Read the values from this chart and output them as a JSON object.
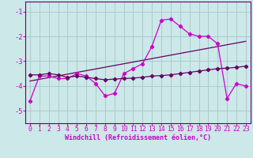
{
  "xlabel": "Windchill (Refroidissement éolien,°C)",
  "bg_color": "#cce8e8",
  "grid_color": "#aacccc",
  "line_color": "#cc00cc",
  "line_color2": "#660066",
  "xlim": [
    -0.5,
    23.5
  ],
  "ylim": [
    -5.5,
    -0.6
  ],
  "yticks": [
    -5,
    -4,
    -3,
    -2,
    -1
  ],
  "xticks": [
    0,
    1,
    2,
    3,
    4,
    5,
    6,
    7,
    8,
    9,
    10,
    11,
    12,
    13,
    14,
    15,
    16,
    17,
    18,
    19,
    20,
    21,
    22,
    23
  ],
  "series1_x": [
    0,
    1,
    2,
    3,
    4,
    5,
    6,
    7,
    8,
    9,
    10,
    11,
    12,
    13,
    14,
    15,
    16,
    17,
    18,
    19,
    20,
    21,
    22,
    23
  ],
  "series1_y": [
    -4.6,
    -3.6,
    -3.6,
    -3.7,
    -3.7,
    -3.5,
    -3.6,
    -3.9,
    -4.4,
    -4.3,
    -3.5,
    -3.3,
    -3.1,
    -2.4,
    -1.35,
    -1.3,
    -1.6,
    -1.9,
    -2.0,
    -2.0,
    -2.3,
    -4.5,
    -3.9,
    -4.0
  ],
  "series2_x": [
    0,
    1,
    2,
    3,
    4,
    5,
    6,
    7,
    8,
    9,
    10,
    11,
    12,
    13,
    14,
    15,
    16,
    17,
    18,
    19,
    20,
    21,
    22,
    23
  ],
  "series2_y": [
    -3.55,
    -3.55,
    -3.5,
    -3.55,
    -3.65,
    -3.6,
    -3.65,
    -3.7,
    -3.75,
    -3.72,
    -3.7,
    -3.68,
    -3.65,
    -3.6,
    -3.58,
    -3.55,
    -3.5,
    -3.45,
    -3.4,
    -3.35,
    -3.3,
    -3.28,
    -3.25,
    -3.2
  ],
  "trend_x": [
    0,
    23
  ],
  "trend_y": [
    -3.8,
    -2.2
  ],
  "xlabel_fontsize": 6.0,
  "tick_fontsize": 5.8
}
